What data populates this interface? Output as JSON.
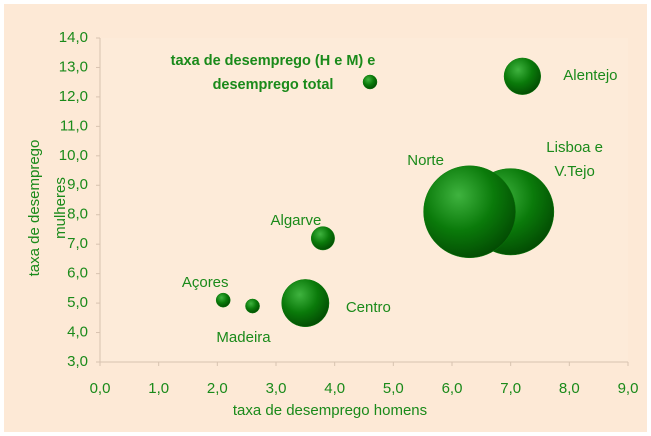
{
  "chart_data": {
    "type": "bubble",
    "xlabel": "taxa de desemprego homens",
    "ylabel": "taxa de desemprego mulheres",
    "xlim": [
      0,
      9
    ],
    "ylim": [
      3,
      14
    ],
    "xticks": [
      {
        "value": 0,
        "label": "0,0"
      },
      {
        "value": 1,
        "label": "1,0"
      },
      {
        "value": 2,
        "label": "2,0"
      },
      {
        "value": 3,
        "label": "3,0"
      },
      {
        "value": 4,
        "label": "4,0"
      },
      {
        "value": 5,
        "label": "5,0"
      },
      {
        "value": 6,
        "label": "6,0"
      },
      {
        "value": 7,
        "label": "7,0"
      },
      {
        "value": 8,
        "label": "8,0"
      },
      {
        "value": 9,
        "label": "9,0"
      }
    ],
    "yticks": [
      {
        "value": 3,
        "label": "3,0"
      },
      {
        "value": 4,
        "label": "4,0"
      },
      {
        "value": 5,
        "label": "5,0"
      },
      {
        "value": 6,
        "label": "6,0"
      },
      {
        "value": 7,
        "label": "7,0"
      },
      {
        "value": 8,
        "label": "8,0"
      },
      {
        "value": 9,
        "label": "9,0"
      },
      {
        "value": 10,
        "label": "10,0"
      },
      {
        "value": 11,
        "label": "11,0"
      },
      {
        "value": 12,
        "label": "12,0"
      },
      {
        "value": 13,
        "label": "13,0"
      },
      {
        "value": 14,
        "label": "14,0"
      }
    ],
    "series": [
      {
        "name": "taxa de desemprego (H e M) e desemprego total",
        "color": "#0a7a0a",
        "labels": [
          "Alentejo",
          "Lisboa e V.Tejo",
          "Norte",
          "Algarve",
          "Açores",
          "Madeira",
          "Centro"
        ],
        "x": [
          7.2,
          7.0,
          6.3,
          3.8,
          2.1,
          2.6,
          3.5
        ],
        "values": [
          12.7,
          8.1,
          8.1,
          7.2,
          5.1,
          4.9,
          5.0
        ],
        "size": [
          27,
          150,
          170,
          11,
          4,
          4,
          45
        ]
      }
    ]
  }
}
